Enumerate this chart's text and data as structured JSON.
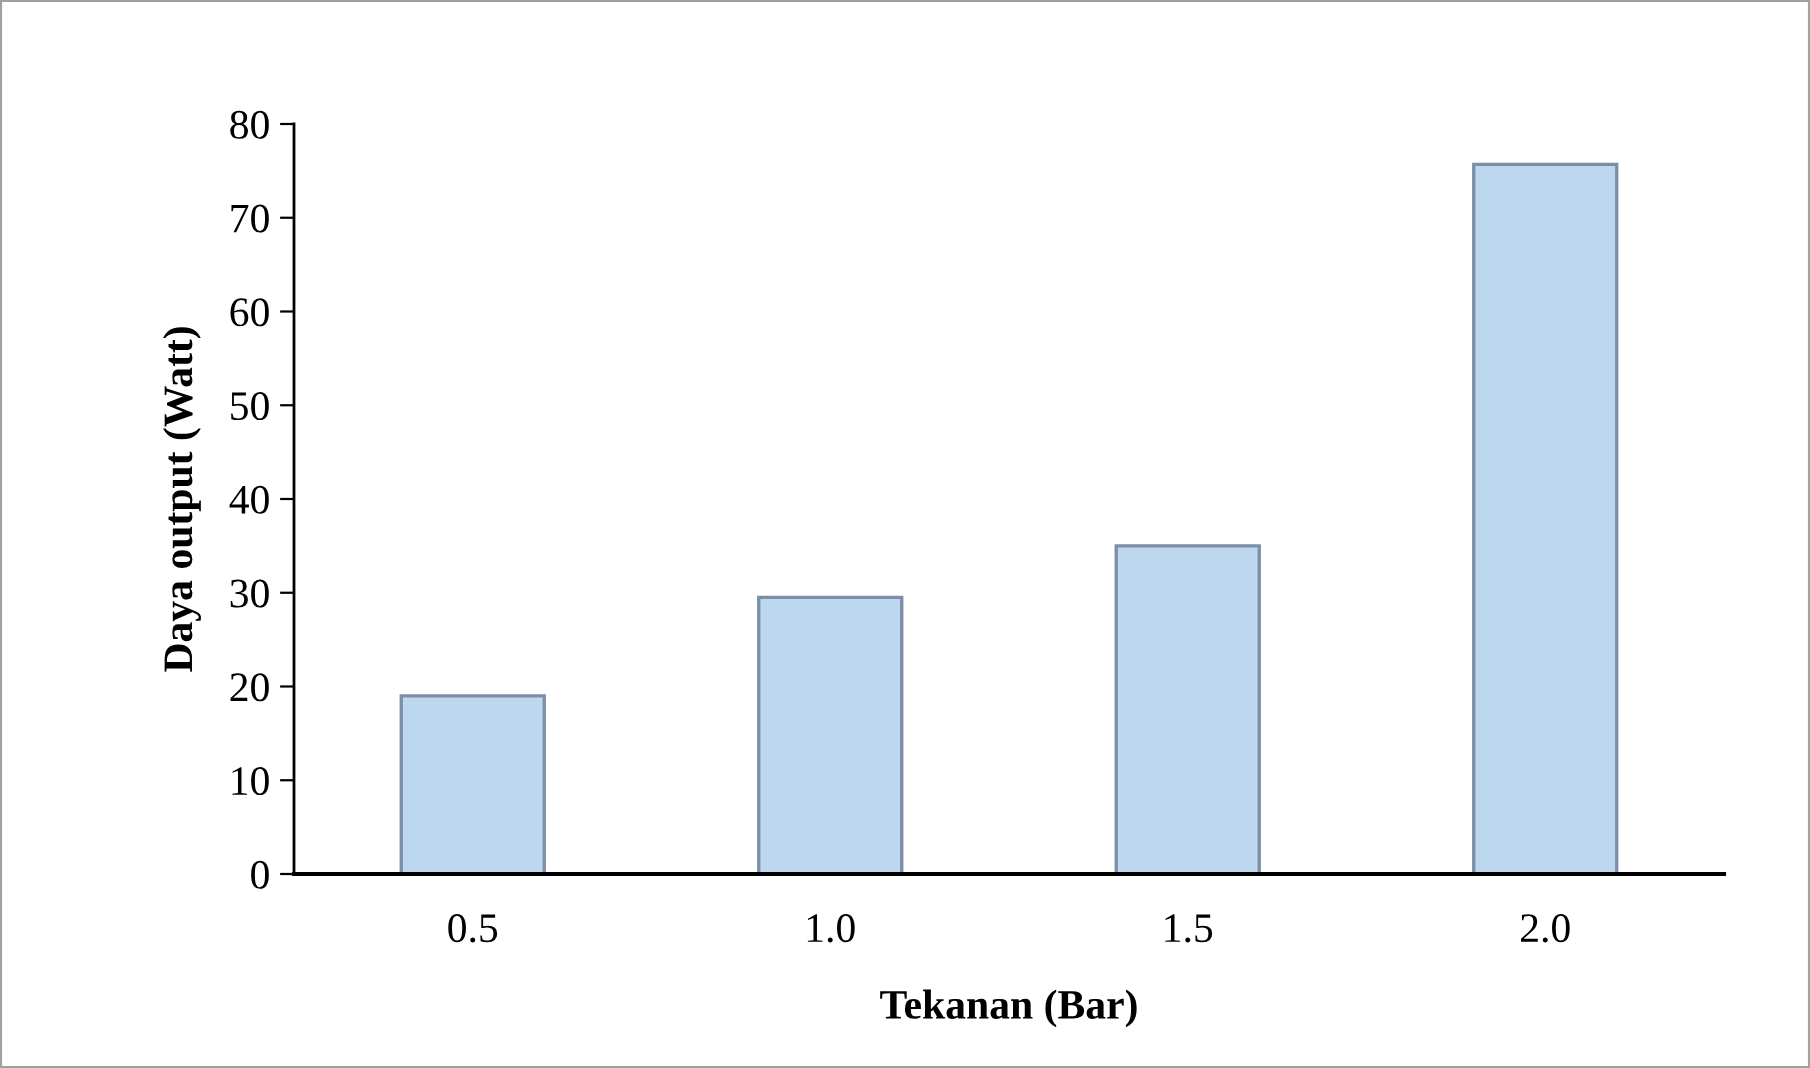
{
  "chart_data": {
    "type": "bar",
    "xlabel": "Tekanan (Bar)",
    "ylabel": "Daya output (Watt)",
    "categories": [
      "0.5",
      "1.0",
      "1.5",
      "2.0"
    ],
    "values": [
      19,
      29.5,
      35,
      75.7
    ],
    "color": "#bdd7ee",
    "ylim": [
      0,
      80
    ],
    "yticks": [
      0,
      10,
      20,
      30,
      40,
      50,
      60,
      70,
      80
    ],
    "grid": false
  }
}
